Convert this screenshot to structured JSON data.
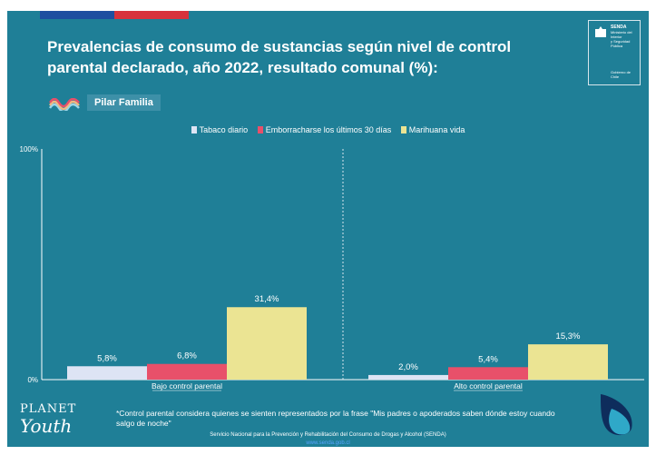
{
  "header": {
    "title": "Prevalencias de consumo de sustancias según nivel de control parental declarado, año 2022, resultado comunal (%):"
  },
  "logo": {
    "lines": [
      "SENDA",
      "Ministerio del Interior",
      "y Seguridad Pública"
    ],
    "footer": "Gobierno de Chile"
  },
  "pillar": {
    "label": "Pilar Familia"
  },
  "chart_data": {
    "type": "bar",
    "categories": [
      "Bajo control parental",
      "Alto control parental"
    ],
    "series": [
      {
        "name": "Tabaco diario",
        "color": "#dde4f4",
        "values": [
          5.8,
          2.0
        ],
        "labels": [
          "5,8%",
          "2,0%"
        ]
      },
      {
        "name": "Emborracharse los últimos 30 días",
        "color": "#e8506a",
        "values": [
          6.8,
          5.4
        ],
        "labels": [
          "6,8%",
          "5,4%"
        ]
      },
      {
        "name": "Marihuana vida",
        "color": "#ebe493",
        "values": [
          31.4,
          15.3
        ],
        "labels": [
          "31,4%",
          "15,3%"
        ]
      }
    ],
    "ylim": [
      0,
      100
    ],
    "y_tick_labels": [
      "0%",
      "100%"
    ],
    "legend_position": "top-center",
    "grid": false
  },
  "footnote": "*Control parental considera quienes se sienten representados por la frase \"Mis padres o apoderados saben dónde estoy cuando salgo de noche\"",
  "credit": "Servicio Nacional para la Prevención y Rehabilitación del Consumo de Drogas y Alcohol (SENDA)",
  "credit_link": "www.senda.gob.cl",
  "brand": {
    "top": "PLANET",
    "bottom": "Youth"
  },
  "colors": {
    "background": "#1f7f97",
    "axis": "#ffffff"
  }
}
